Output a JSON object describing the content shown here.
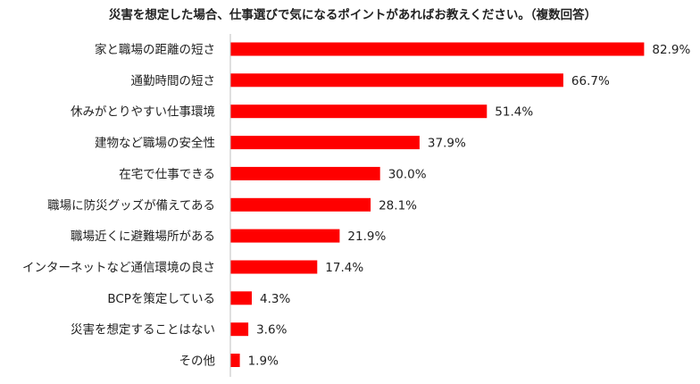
{
  "chart_data": {
    "type": "bar",
    "orientation": "horizontal",
    "title": "災害を想定した場合、仕事選びで気になるポイントがあればお教えください。（複数回答）",
    "categories": [
      "家と職場の距離の短さ",
      "通勤時間の短さ",
      "休みがとりやすい仕事環境",
      "建物など職場の安全性",
      "在宅で仕事できる",
      "職場に防災グッズが備えてある",
      "職場近くに避難場所がある",
      "インターネットなど通信環境の良さ",
      "BCPを策定している",
      "災害を想定することはない",
      "その他"
    ],
    "values": [
      82.9,
      66.7,
      51.4,
      37.9,
      30.0,
      28.1,
      21.9,
      17.4,
      4.3,
      3.6,
      1.9
    ],
    "value_labels": [
      "82.9%",
      "66.7%",
      "51.4%",
      "37.9%",
      "30.0%",
      "28.1%",
      "21.9%",
      "17.4%",
      "4.3%",
      "3.6%",
      "1.9%"
    ],
    "xlim": [
      0,
      100
    ],
    "grid": false,
    "legend": "none",
    "bar_color": "#ff0000",
    "axis_color": "#bfbfbf"
  }
}
